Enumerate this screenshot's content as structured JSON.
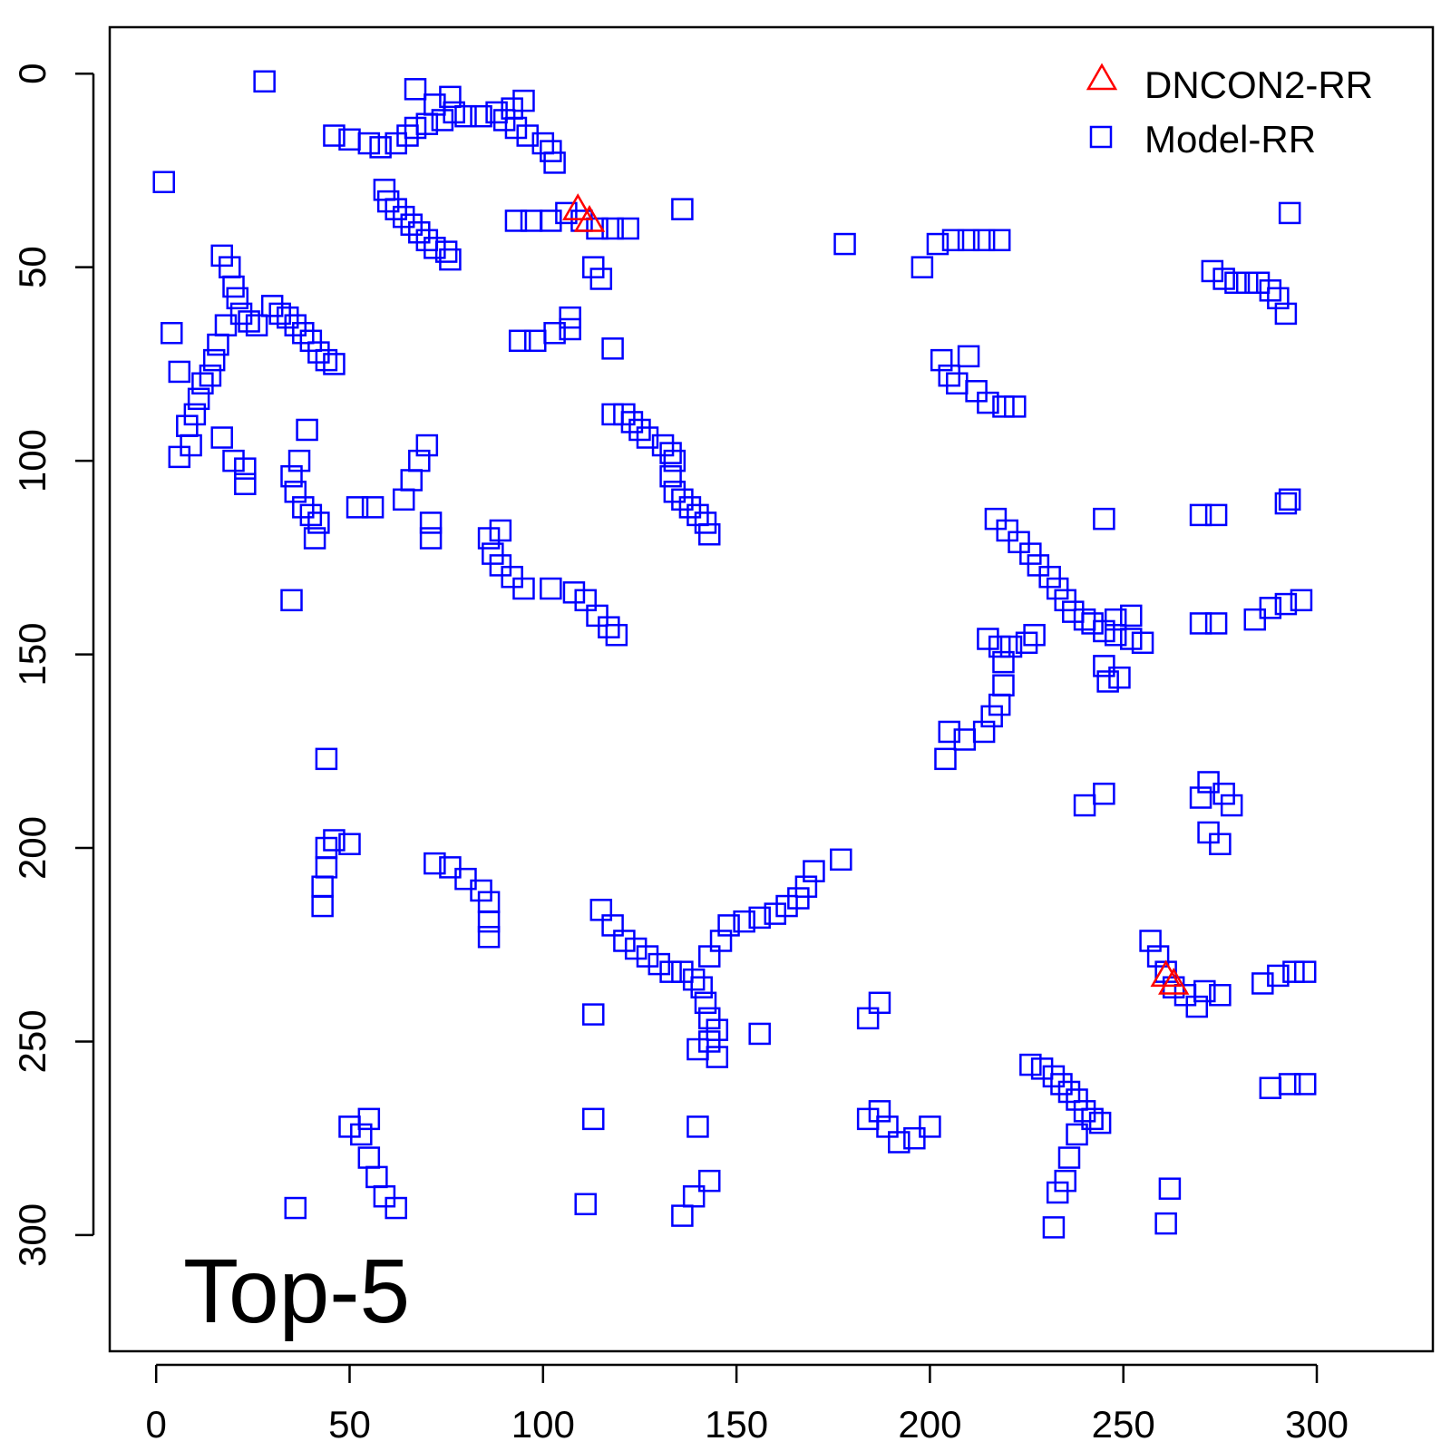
{
  "chart_data": {
    "type": "scatter",
    "title": "",
    "xlabel": "",
    "ylabel": "",
    "xlim": [
      -12,
      330
    ],
    "ylim": [
      -12,
      330
    ],
    "y_reversed": true,
    "grid": false,
    "legend_position": "top-right",
    "x_ticks": [
      0,
      50,
      100,
      150,
      200,
      250,
      300
    ],
    "y_ticks": [
      0,
      50,
      100,
      150,
      200,
      250,
      300
    ],
    "annotation": "Top-5",
    "series": [
      {
        "name": "DNCON2-RR",
        "marker": "triangle",
        "color": "#ff0000",
        "points": [
          [
            109,
            35
          ],
          [
            112,
            38
          ],
          [
            261,
            233
          ],
          [
            263,
            235
          ]
        ]
      },
      {
        "name": "Model-RR",
        "marker": "square",
        "color": "#0000ff",
        "points": [
          [
            28,
            2
          ],
          [
            2,
            28
          ],
          [
            46,
            16
          ],
          [
            50,
            17
          ],
          [
            55,
            18
          ],
          [
            58,
            19
          ],
          [
            62,
            18
          ],
          [
            65,
            16
          ],
          [
            67,
            14
          ],
          [
            70,
            13
          ],
          [
            74,
            12
          ],
          [
            77,
            10
          ],
          [
            76,
            6
          ],
          [
            80,
            11
          ],
          [
            84,
            11
          ],
          [
            88,
            10
          ],
          [
            92,
            9
          ],
          [
            95,
            7
          ],
          [
            67,
            4
          ],
          [
            72,
            8
          ],
          [
            90,
            12
          ],
          [
            93,
            14
          ],
          [
            96,
            16
          ],
          [
            100,
            18
          ],
          [
            102,
            20
          ],
          [
            103,
            23
          ],
          [
            59,
            30
          ],
          [
            60,
            33
          ],
          [
            62,
            35
          ],
          [
            64,
            37
          ],
          [
            66,
            39
          ],
          [
            68,
            41
          ],
          [
            70,
            43
          ],
          [
            72,
            45
          ],
          [
            75,
            46
          ],
          [
            76,
            48
          ],
          [
            93,
            38
          ],
          [
            97,
            38
          ],
          [
            102,
            38
          ],
          [
            106,
            36
          ],
          [
            110,
            38
          ],
          [
            114,
            40
          ],
          [
            118,
            40
          ],
          [
            122,
            40
          ],
          [
            136,
            35
          ],
          [
            113,
            50
          ],
          [
            115,
            53
          ],
          [
            107,
            63
          ],
          [
            94,
            69
          ],
          [
            98,
            69
          ],
          [
            103,
            67
          ],
          [
            107,
            66
          ],
          [
            118,
            71
          ],
          [
            17,
            47
          ],
          [
            19,
            50
          ],
          [
            20,
            55
          ],
          [
            21,
            58
          ],
          [
            22,
            62
          ],
          [
            24,
            64
          ],
          [
            26,
            65
          ],
          [
            18,
            65
          ],
          [
            16,
            70
          ],
          [
            15,
            74
          ],
          [
            14,
            78
          ],
          [
            12,
            80
          ],
          [
            11,
            84
          ],
          [
            10,
            88
          ],
          [
            8,
            91
          ],
          [
            9,
            96
          ],
          [
            6,
            99
          ],
          [
            4,
            67
          ],
          [
            6,
            77
          ],
          [
            30,
            60
          ],
          [
            32,
            62
          ],
          [
            34,
            63
          ],
          [
            36,
            65
          ],
          [
            38,
            67
          ],
          [
            40,
            69
          ],
          [
            42,
            72
          ],
          [
            44,
            74
          ],
          [
            46,
            75
          ],
          [
            17,
            94
          ],
          [
            20,
            100
          ],
          [
            23,
            102
          ],
          [
            23,
            106
          ],
          [
            39,
            92
          ],
          [
            37,
            100
          ],
          [
            35,
            104
          ],
          [
            36,
            108
          ],
          [
            38,
            112
          ],
          [
            40,
            114
          ],
          [
            42,
            116
          ],
          [
            41,
            120
          ],
          [
            35,
            136
          ],
          [
            52,
            112
          ],
          [
            56,
            112
          ],
          [
            64,
            110
          ],
          [
            66,
            105
          ],
          [
            68,
            100
          ],
          [
            70,
            96
          ],
          [
            71,
            116
          ],
          [
            71,
            120
          ],
          [
            44,
            177
          ],
          [
            89,
            118
          ],
          [
            86,
            120
          ],
          [
            87,
            124
          ],
          [
            89,
            127
          ],
          [
            92,
            130
          ],
          [
            95,
            133
          ],
          [
            102,
            133
          ],
          [
            108,
            134
          ],
          [
            111,
            136
          ],
          [
            114,
            140
          ],
          [
            117,
            143
          ],
          [
            119,
            145
          ],
          [
            118,
            88
          ],
          [
            121,
            88
          ],
          [
            123,
            90
          ],
          [
            125,
            92
          ],
          [
            127,
            94
          ],
          [
            131,
            96
          ],
          [
            133,
            98
          ],
          [
            134,
            100
          ],
          [
            133,
            104
          ],
          [
            134,
            108
          ],
          [
            136,
            110
          ],
          [
            138,
            112
          ],
          [
            140,
            114
          ],
          [
            142,
            116
          ],
          [
            143,
            119
          ],
          [
            178,
            44
          ],
          [
            198,
            50
          ],
          [
            202,
            44
          ],
          [
            206,
            43
          ],
          [
            210,
            43
          ],
          [
            214,
            43
          ],
          [
            218,
            43
          ],
          [
            203,
            74
          ],
          [
            205,
            78
          ],
          [
            207,
            80
          ],
          [
            210,
            73
          ],
          [
            212,
            82
          ],
          [
            215,
            85
          ],
          [
            219,
            86
          ],
          [
            222,
            86
          ],
          [
            273,
            51
          ],
          [
            276,
            53
          ],
          [
            279,
            54
          ],
          [
            282,
            54
          ],
          [
            285,
            54
          ],
          [
            288,
            56
          ],
          [
            290,
            58
          ],
          [
            292,
            62
          ],
          [
            293,
            36
          ],
          [
            217,
            115
          ],
          [
            220,
            118
          ],
          [
            223,
            121
          ],
          [
            226,
            124
          ],
          [
            228,
            127
          ],
          [
            231,
            130
          ],
          [
            233,
            133
          ],
          [
            235,
            136
          ],
          [
            237,
            139
          ],
          [
            240,
            141
          ],
          [
            242,
            142
          ],
          [
            245,
            144
          ],
          [
            248,
            145
          ],
          [
            252,
            146
          ],
          [
            255,
            147
          ],
          [
            245,
            153
          ],
          [
            246,
            157
          ],
          [
            249,
            156
          ],
          [
            248,
            141
          ],
          [
            252,
            140
          ],
          [
            215,
            146
          ],
          [
            218,
            148
          ],
          [
            221,
            148
          ],
          [
            225,
            147
          ],
          [
            227,
            145
          ],
          [
            219,
            152
          ],
          [
            219,
            158
          ],
          [
            218,
            163
          ],
          [
            216,
            166
          ],
          [
            214,
            170
          ],
          [
            209,
            172
          ],
          [
            205,
            170
          ],
          [
            204,
            177
          ],
          [
            245,
            115
          ],
          [
            270,
            114
          ],
          [
            274,
            114
          ],
          [
            292,
            111
          ],
          [
            293,
            110
          ],
          [
            284,
            141
          ],
          [
            288,
            138
          ],
          [
            292,
            137
          ],
          [
            296,
            136
          ],
          [
            270,
            142
          ],
          [
            274,
            142
          ],
          [
            245,
            186
          ],
          [
            240,
            189
          ],
          [
            270,
            187
          ],
          [
            272,
            183
          ],
          [
            276,
            186
          ],
          [
            278,
            189
          ],
          [
            272,
            196
          ],
          [
            275,
            199
          ],
          [
            44,
            200
          ],
          [
            46,
            198
          ],
          [
            50,
            199
          ],
          [
            44,
            205
          ],
          [
            43,
            210
          ],
          [
            43,
            215
          ],
          [
            72,
            204
          ],
          [
            76,
            205
          ],
          [
            80,
            208
          ],
          [
            84,
            211
          ],
          [
            86,
            214
          ],
          [
            86,
            219
          ],
          [
            86,
            223
          ],
          [
            115,
            216
          ],
          [
            118,
            220
          ],
          [
            121,
            224
          ],
          [
            124,
            226
          ],
          [
            127,
            228
          ],
          [
            130,
            230
          ],
          [
            133,
            232
          ],
          [
            136,
            232
          ],
          [
            139,
            234
          ],
          [
            141,
            236
          ],
          [
            142,
            240
          ],
          [
            143,
            244
          ],
          [
            145,
            247
          ],
          [
            143,
            250
          ],
          [
            145,
            254
          ],
          [
            140,
            252
          ],
          [
            143,
            228
          ],
          [
            146,
            224
          ],
          [
            148,
            220
          ],
          [
            152,
            219
          ],
          [
            156,
            218
          ],
          [
            160,
            217
          ],
          [
            163,
            215
          ],
          [
            166,
            213
          ],
          [
            168,
            210
          ],
          [
            170,
            206
          ],
          [
            177,
            203
          ],
          [
            113,
            243
          ],
          [
            156,
            248
          ],
          [
            184,
            244
          ],
          [
            187,
            240
          ],
          [
            257,
            224
          ],
          [
            259,
            228
          ],
          [
            261,
            232
          ],
          [
            263,
            236
          ],
          [
            266,
            238
          ],
          [
            269,
            241
          ],
          [
            271,
            237
          ],
          [
            275,
            238
          ],
          [
            286,
            235
          ],
          [
            290,
            233
          ],
          [
            294,
            232
          ],
          [
            297,
            232
          ],
          [
            226,
            256
          ],
          [
            229,
            257
          ],
          [
            232,
            259
          ],
          [
            234,
            261
          ],
          [
            236,
            263
          ],
          [
            238,
            265
          ],
          [
            240,
            268
          ],
          [
            242,
            270
          ],
          [
            244,
            271
          ],
          [
            238,
            274
          ],
          [
            236,
            280
          ],
          [
            184,
            270
          ],
          [
            187,
            268
          ],
          [
            189,
            272
          ],
          [
            192,
            276
          ],
          [
            196,
            275
          ],
          [
            200,
            272
          ],
          [
            140,
            272
          ],
          [
            113,
            270
          ],
          [
            111,
            292
          ],
          [
            136,
            295
          ],
          [
            139,
            290
          ],
          [
            143,
            286
          ],
          [
            235,
            286
          ],
          [
            233,
            289
          ],
          [
            232,
            298
          ],
          [
            262,
            288
          ],
          [
            261,
            297
          ],
          [
            288,
            262
          ],
          [
            293,
            261
          ],
          [
            297,
            261
          ],
          [
            50,
            272
          ],
          [
            53,
            274
          ],
          [
            55,
            280
          ],
          [
            57,
            285
          ],
          [
            59,
            290
          ],
          [
            62,
            293
          ],
          [
            36,
            293
          ],
          [
            55,
            270
          ]
        ]
      }
    ]
  }
}
